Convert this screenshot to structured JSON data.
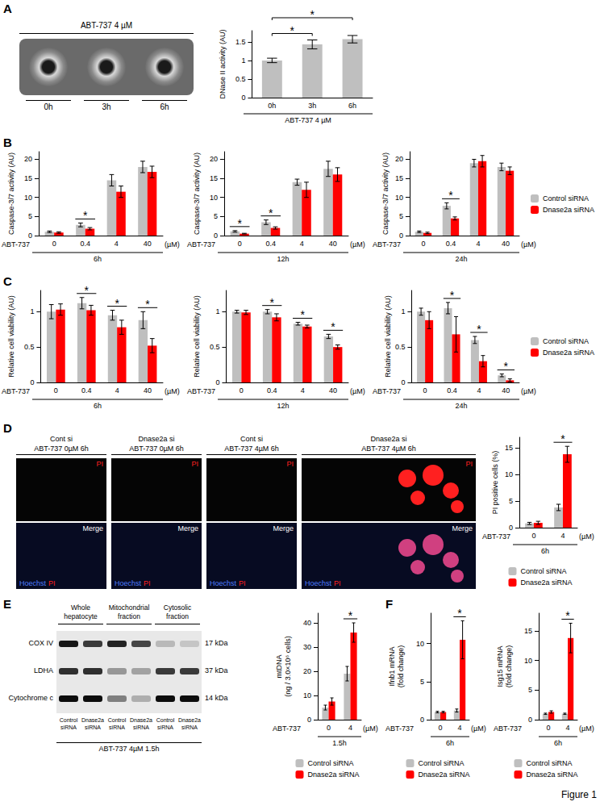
{
  "panel_labels": [
    "A",
    "B",
    "C",
    "D",
    "E",
    "F"
  ],
  "figure_label": "Figure 1",
  "zymogram": {
    "header": "ABT-737 4 µM",
    "lanes": [
      "0h",
      "3h",
      "6h"
    ]
  },
  "micrographs": [
    {
      "title": [
        "Cont si",
        "ABT-737 0µM 6h"
      ],
      "top_label": "PI",
      "bottom_label": "Merge",
      "stains": [
        "Hoechst",
        "PI"
      ]
    },
    {
      "title": [
        "Dnase2a si",
        "ABT-737 0µM 6h"
      ],
      "top_label": "PI",
      "bottom_label": "Merge",
      "stains": [
        "Hoechst",
        "PI"
      ]
    },
    {
      "title": [
        "Cont si",
        "ABT-737 4µM 6h"
      ],
      "top_label": "PI",
      "bottom_label": "Merge",
      "stains": [
        "Hoechst",
        "PI"
      ]
    },
    {
      "title": [
        "Dnase2a si",
        "ABT-737 4µM 6h"
      ],
      "top_label": "PI",
      "bottom_label": "Merge",
      "stains": [
        "Hoechst",
        "PI"
      ]
    }
  ],
  "blot": {
    "groups": [
      "Whole hepatocyte",
      "Mitochondrial fraction",
      "Cytosolic fraction"
    ],
    "rows": [
      {
        "protein": "COX IV",
        "size": "17 kDa"
      },
      {
        "protein": "LDHA",
        "size": "37 kDa"
      },
      {
        "protein": "Cytochrome c",
        "size": "14 kDa"
      }
    ],
    "lanes": [
      "Control siRNA",
      "Dnase2a siRNA"
    ],
    "footer": "ABT-737 4µM 1.5h"
  },
  "chart_data": [
    {
      "type": "bar",
      "y_label": "DNase II activity (AU)",
      "categories": [
        "0h",
        "3h",
        "6h"
      ],
      "x_title": "ABT-737 4 µM",
      "ylim": [
        0,
        1.8
      ],
      "yticks": [
        0,
        0.5,
        1,
        1.5
      ],
      "grid": false,
      "series": [
        {
          "name": "DNase II activity",
          "color": "#bfbfbf",
          "values": [
            1.0,
            1.43,
            1.57
          ],
          "errors": [
            0.06,
            0.12,
            0.1
          ]
        }
      ],
      "annotations": [
        {
          "text": "*",
          "between": [
            "0h",
            "3h"
          ]
        },
        {
          "text": "*",
          "between": [
            "0h",
            "6h"
          ]
        }
      ]
    },
    {
      "type": "bar",
      "y_label": "Caspase-3/7 activity (AU)",
      "categories": [
        "0",
        "0.4",
        "4",
        "40"
      ],
      "x_title": "ABT-737",
      "x_unit": "(µM)",
      "time": "6h",
      "ylim": [
        0,
        22
      ],
      "yticks": [
        0,
        5,
        10,
        15,
        20
      ],
      "grid": false,
      "series": [
        {
          "name": "Control siRNA",
          "color": "#bfbfbf",
          "values": [
            1.0,
            2.8,
            14.5,
            18
          ],
          "errors": [
            0.2,
            0.5,
            1.5,
            1.5
          ]
        },
        {
          "name": "Dnase2a siRNA",
          "color": "#ff0000",
          "values": [
            0.8,
            1.8,
            11.5,
            16.7
          ],
          "errors": [
            0.2,
            0.3,
            1.5,
            1.5
          ]
        }
      ],
      "annotations": [
        {
          "text": "*",
          "category": "0.4"
        }
      ]
    },
    {
      "type": "bar",
      "y_label": "Caspase-3/7 activity (AU)",
      "categories": [
        "0",
        "0.4",
        "4",
        "40"
      ],
      "x_title": "ABT-737",
      "x_unit": "(µM)",
      "time": "12h",
      "ylim": [
        0,
        22
      ],
      "yticks": [
        0,
        5,
        10,
        15,
        20
      ],
      "grid": false,
      "series": [
        {
          "name": "Control siRNA",
          "color": "#bfbfbf",
          "values": [
            1.1,
            3.5,
            14,
            17.5
          ],
          "errors": [
            0.2,
            0.6,
            0.8,
            2
          ]
        },
        {
          "name": "Dnase2a siRNA",
          "color": "#ff0000",
          "values": [
            0.5,
            2.0,
            12,
            16
          ],
          "errors": [
            0.1,
            0.3,
            2,
            1.8
          ]
        }
      ],
      "annotations": [
        {
          "text": "*",
          "category": "0"
        },
        {
          "text": "*",
          "category": "0.4"
        }
      ]
    },
    {
      "type": "bar",
      "y_label": "Caspase-3/7 activity (AU)",
      "categories": [
        "0",
        "0.4",
        "4",
        "40"
      ],
      "x_title": "ABT-737",
      "x_unit": "(µM)",
      "time": "24h",
      "ylim": [
        0,
        22
      ],
      "yticks": [
        0,
        5,
        10,
        15,
        20
      ],
      "grid": false,
      "legend": "right",
      "series": [
        {
          "name": "Control siRNA",
          "color": "#bfbfbf",
          "values": [
            1.0,
            7.8,
            19,
            18
          ],
          "errors": [
            0.2,
            0.8,
            1,
            1
          ]
        },
        {
          "name": "Dnase2a siRNA",
          "color": "#ff0000",
          "values": [
            0.7,
            4.5,
            19.5,
            17
          ],
          "errors": [
            0.2,
            0.4,
            1.5,
            1
          ]
        }
      ],
      "annotations": [
        {
          "text": "*",
          "category": "0.4"
        }
      ]
    },
    {
      "type": "bar",
      "y_label": "Relative cell viability (AU)",
      "categories": [
        "0",
        "0.4",
        "4",
        "40"
      ],
      "x_title": "ABT-737",
      "x_unit": "(µM)",
      "time": "6h",
      "ylim": [
        0,
        1.3
      ],
      "yticks": [
        0,
        0.5,
        1
      ],
      "grid": false,
      "series": [
        {
          "name": "Control siRNA",
          "color": "#bfbfbf",
          "values": [
            1.0,
            1.12,
            0.95,
            0.88
          ],
          "errors": [
            0.1,
            0.08,
            0.07,
            0.12
          ]
        },
        {
          "name": "Dnase2a siRNA",
          "color": "#ff0000",
          "values": [
            1.03,
            1.02,
            0.78,
            0.52
          ],
          "errors": [
            0.08,
            0.07,
            0.1,
            0.1
          ]
        }
      ],
      "annotations": [
        {
          "text": "*",
          "category": "0.4"
        },
        {
          "text": "*",
          "category": "4"
        },
        {
          "text": "*",
          "category": "40"
        }
      ]
    },
    {
      "type": "bar",
      "y_label": "Relative cell viability (AU)",
      "categories": [
        "0",
        "0.4",
        "4",
        "40"
      ],
      "x_title": "ABT-737",
      "x_unit": "(µM)",
      "time": "12h",
      "ylim": [
        0,
        1.3
      ],
      "yticks": [
        0,
        0.5,
        1
      ],
      "grid": false,
      "series": [
        {
          "name": "Control siRNA",
          "color": "#bfbfbf",
          "values": [
            1.0,
            1.0,
            0.83,
            0.65
          ],
          "errors": [
            0.02,
            0.03,
            0.02,
            0.03
          ]
        },
        {
          "name": "Dnase2a siRNA",
          "color": "#ff0000",
          "values": [
            0.99,
            0.92,
            0.79,
            0.5
          ],
          "errors": [
            0.03,
            0.05,
            0.02,
            0.03
          ]
        }
      ],
      "annotations": [
        {
          "text": "*",
          "category": "0.4"
        },
        {
          "text": "*",
          "category": "4"
        },
        {
          "text": "*",
          "category": "40"
        }
      ]
    },
    {
      "type": "bar",
      "y_label": "Relative cell viability (AU)",
      "categories": [
        "0",
        "0.4",
        "4",
        "40"
      ],
      "x_title": "ABT-737",
      "x_unit": "(µM)",
      "time": "24h",
      "ylim": [
        0,
        1.3
      ],
      "yticks": [
        0,
        0.5,
        1
      ],
      "grid": false,
      "legend": "right",
      "series": [
        {
          "name": "Control siRNA",
          "color": "#bfbfbf",
          "values": [
            1.0,
            1.05,
            0.6,
            0.1
          ],
          "errors": [
            0.05,
            0.08,
            0.05,
            0.02
          ]
        },
        {
          "name": "Dnase2a siRNA",
          "color": "#ff0000",
          "values": [
            0.88,
            0.68,
            0.3,
            0.03
          ],
          "errors": [
            0.12,
            0.25,
            0.08,
            0.02
          ]
        }
      ],
      "annotations": [
        {
          "text": "*",
          "category": "0.4"
        },
        {
          "text": "*",
          "category": "4"
        },
        {
          "text": "*",
          "category": "40"
        }
      ]
    },
    {
      "type": "bar",
      "y_label": "PI positive cells (%)",
      "categories": [
        "0",
        "4"
      ],
      "x_title": "ABT-737",
      "x_unit": "(µM)",
      "time": "6h",
      "ylim": [
        0,
        17
      ],
      "yticks": [
        0,
        5,
        10,
        15
      ],
      "grid": false,
      "legend": "bottom",
      "series": [
        {
          "name": "Control siRNA",
          "color": "#bfbfbf",
          "values": [
            0.8,
            3.8
          ],
          "errors": [
            0.2,
            0.6
          ]
        },
        {
          "name": "Dnase2a siRNA",
          "color": "#ff0000",
          "values": [
            0.9,
            13.8
          ],
          "errors": [
            0.3,
            1.5
          ]
        }
      ],
      "annotations": [
        {
          "text": "*",
          "category": "4"
        }
      ]
    },
    {
      "type": "bar",
      "y_label": "mtDNA\n(ng / 3.0×10⁶ cells)",
      "categories": [
        "0",
        "4"
      ],
      "x_title": "ABT-737",
      "x_unit": "(µM)",
      "time": "1.5h",
      "ylim": [
        0,
        44
      ],
      "yticks": [
        0,
        10,
        20,
        30,
        40
      ],
      "grid": false,
      "legend": "bottom",
      "series": [
        {
          "name": "Control siRNA",
          "color": "#bfbfbf",
          "values": [
            5,
            19
          ],
          "errors": [
            1,
            3
          ]
        },
        {
          "name": "Dnase2a siRNA",
          "color": "#ff0000",
          "values": [
            7.5,
            36
          ],
          "errors": [
            1.5,
            4
          ]
        }
      ],
      "annotations": [
        {
          "text": "*",
          "category": "4"
        }
      ]
    },
    {
      "type": "bar",
      "y_label": "Ifnb1 mRNA\n(fold change)",
      "categories": [
        "0",
        "4"
      ],
      "x_title": "ABT-737",
      "x_unit": "(µM)",
      "time": "6h",
      "ylim": [
        0,
        14
      ],
      "yticks": [
        0,
        5,
        10
      ],
      "grid": false,
      "legend": "bottom",
      "series": [
        {
          "name": "Control siRNA",
          "color": "#bfbfbf",
          "values": [
            1.0,
            1.2
          ],
          "errors": [
            0.1,
            0.2
          ]
        },
        {
          "name": "Dnase2a siRNA",
          "color": "#ff0000",
          "values": [
            1.0,
            10.5
          ],
          "errors": [
            0.1,
            2.5
          ]
        }
      ],
      "annotations": [
        {
          "text": "*",
          "category": "4"
        }
      ]
    },
    {
      "type": "bar",
      "y_label": "Isg15 mRNA\n(fold change)",
      "categories": [
        "0",
        "4"
      ],
      "x_title": "ABT-737",
      "x_unit": "(µM)",
      "time": "6h",
      "ylim": [
        0,
        18
      ],
      "yticks": [
        0,
        5,
        10,
        15
      ],
      "grid": false,
      "legend": "bottom",
      "series": [
        {
          "name": "Control siRNA",
          "color": "#bfbfbf",
          "values": [
            1.0,
            1.0
          ],
          "errors": [
            0.1,
            0.1
          ]
        },
        {
          "name": "Dnase2a siRNA",
          "color": "#ff0000",
          "values": [
            1.3,
            13.8
          ],
          "errors": [
            0.2,
            2.5
          ]
        }
      ],
      "annotations": [
        {
          "text": "*",
          "category": "4"
        }
      ]
    }
  ]
}
